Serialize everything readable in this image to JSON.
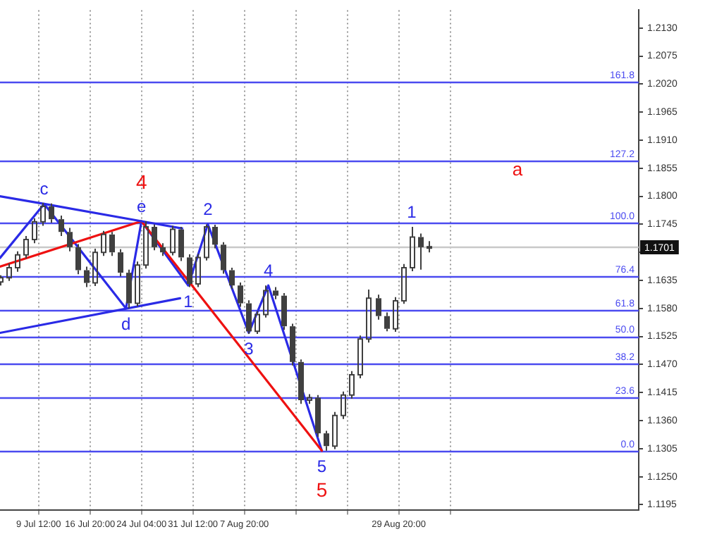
{
  "chart_data": {
    "type": "candlestick",
    "color": "#404040",
    "x": [
      "--07-04T00:00",
      "--07-05T05:00",
      "--07-06T11:00",
      "--07-07T16:00",
      "--07-08T21:00",
      "--07-10T03:00",
      "--07-11T08:00",
      "--07-12T13:00",
      "--07-13T19:00",
      "--07-15T00:00",
      "--07-16T05:00",
      "--07-17T11:00",
      "--07-18T16:00",
      "--07-19T21:00",
      "--07-21T03:00",
      "--07-22T08:00",
      "--07-23T13:00",
      "--07-24T19:00",
      "--07-26T00:00",
      "--07-27T05:00",
      "--07-28T11:00",
      "--07-29T16:00",
      "--07-30T21:00",
      "--08-01T03:00",
      "--08-02T08:00",
      "--08-03T13:00",
      "--08-04T19:00",
      "--08-06T00:00",
      "--08-07T05:00",
      "--08-08T11:00",
      "--08-09T16:00",
      "--08-10T21:00",
      "--08-12T03:00",
      "--08-13T08:00",
      "--08-14T13:00",
      "--08-15T19:00",
      "--08-17T00:00",
      "--08-18T05:00",
      "--08-19T11:00",
      "--08-20T16:00",
      "--08-21T21:00",
      "--08-23T03:00",
      "--08-24T08:00",
      "--08-25T13:00",
      "--08-26T19:00",
      "--08-28T00:00",
      "--08-29T05:00",
      "--08-30T11:00",
      "--08-31T16:00",
      "--09-01T21:00",
      "--09-03T03:00"
    ],
    "ohlc": [
      [
        1.1632,
        1.1645,
        1.1625,
        1.164
      ],
      [
        1.164,
        1.1668,
        1.1634,
        1.166
      ],
      [
        1.166,
        1.1692,
        1.1652,
        1.1685
      ],
      [
        1.1685,
        1.1722,
        1.1678,
        1.1715
      ],
      [
        1.1715,
        1.1757,
        1.1708,
        1.175
      ],
      [
        1.175,
        1.1787,
        1.1742,
        1.178
      ],
      [
        1.178,
        1.1786,
        1.1748,
        1.1755
      ],
      [
        1.1755,
        1.1762,
        1.1722,
        1.173
      ],
      [
        1.173,
        1.1738,
        1.1692,
        1.17
      ],
      [
        1.17,
        1.1706,
        1.1647,
        1.1655
      ],
      [
        1.1655,
        1.1662,
        1.1622,
        1.163
      ],
      [
        1.163,
        1.1697,
        1.1624,
        1.169
      ],
      [
        1.169,
        1.1732,
        1.1683,
        1.1725
      ],
      [
        1.1725,
        1.173,
        1.1683,
        1.169
      ],
      [
        1.169,
        1.1696,
        1.1643,
        1.165
      ],
      [
        1.165,
        1.1656,
        1.158,
        1.159
      ],
      [
        1.159,
        1.1672,
        1.1584,
        1.1665
      ],
      [
        1.1665,
        1.1751,
        1.1658,
        1.174
      ],
      [
        1.174,
        1.1745,
        1.1694,
        1.17
      ],
      [
        1.17,
        1.1708,
        1.1683,
        1.169
      ],
      [
        1.169,
        1.1742,
        1.1684,
        1.1735
      ],
      [
        1.1735,
        1.174,
        1.1673,
        1.168
      ],
      [
        1.168,
        1.1686,
        1.1622,
        1.1628
      ],
      [
        1.1628,
        1.1687,
        1.1622,
        1.168
      ],
      [
        1.168,
        1.1745,
        1.1674,
        1.174
      ],
      [
        1.174,
        1.1744,
        1.1698,
        1.1705
      ],
      [
        1.1705,
        1.171,
        1.1648,
        1.1655
      ],
      [
        1.1655,
        1.166,
        1.1618,
        1.1625
      ],
      [
        1.1625,
        1.1631,
        1.1583,
        1.159
      ],
      [
        1.159,
        1.1596,
        1.153,
        1.1535
      ],
      [
        1.1535,
        1.1575,
        1.153,
        1.1568
      ],
      [
        1.1568,
        1.1625,
        1.1562,
        1.1615
      ],
      [
        1.1615,
        1.1622,
        1.1598,
        1.1605
      ],
      [
        1.1605,
        1.161,
        1.1538,
        1.1545
      ],
      [
        1.1545,
        1.155,
        1.1468,
        1.1475
      ],
      [
        1.1475,
        1.148,
        1.1393,
        1.14
      ],
      [
        1.14,
        1.1412,
        1.1393,
        1.1405
      ],
      [
        1.1405,
        1.141,
        1.1328,
        1.1335
      ],
      [
        1.1335,
        1.134,
        1.1301,
        1.131
      ],
      [
        1.131,
        1.1377,
        1.1304,
        1.137
      ],
      [
        1.137,
        1.1417,
        1.1363,
        1.141
      ],
      [
        1.141,
        1.1457,
        1.1403,
        1.145
      ],
      [
        1.145,
        1.1527,
        1.1443,
        1.152
      ],
      [
        1.152,
        1.1617,
        1.1513,
        1.16
      ],
      [
        1.16,
        1.1607,
        1.1558,
        1.1565
      ],
      [
        1.1565,
        1.1572,
        1.1535,
        1.154
      ],
      [
        1.154,
        1.1602,
        1.1534,
        1.1595
      ],
      [
        1.1595,
        1.1667,
        1.1589,
        1.166
      ],
      [
        1.166,
        1.174,
        1.1653,
        1.172
      ],
      [
        1.172,
        1.1727,
        1.1656,
        1.17
      ],
      [
        1.17,
        1.1712,
        1.169,
        1.1701
      ]
    ],
    "series": [
      {
        "type": "line",
        "color": "#2a2ae6",
        "x": [
          "--07-04T00:00",
          "--07-10T07:00",
          "--07-24T04:00",
          "--07-29T23:00"
        ],
        "values": [
          1.18,
          1.1785,
          1.1751,
          1.1737
        ]
      },
      {
        "type": "line",
        "color": "#2a2ae6",
        "x": [
          "--07-04T00:00",
          "--07-29T16:00"
        ],
        "values": [
          1.1532,
          1.16
        ]
      },
      {
        "type": "line",
        "color": "#ee1111",
        "x": [
          "--07-04T00:00",
          "--07-24T04:00",
          "--08-18T21:00"
        ],
        "values": [
          1.1662,
          1.1751,
          1.1301
        ]
      },
      {
        "type": "line",
        "color": "#2a2ae6",
        "x": [
          "--07-04T00:00",
          "--07-10T07:00",
          "--07-21T23:00",
          "--07-24T04:00",
          "--07-30T20:00",
          "--08-02T15:00",
          "--08-08T11:00",
          "--08-11T06:00",
          "--08-18T21:00"
        ],
        "values": [
          1.1679,
          1.1785,
          1.158,
          1.1751,
          1.1625,
          1.1745,
          1.1532,
          1.1625,
          1.1301
        ]
      }
    ],
    "xlim": [
      "--07-04T00:00",
      "--10-03T01:00"
    ],
    "xticks": [
      {
        "value": "--07-09T12:00",
        "label": "9 Jul 12:00"
      },
      {
        "value": "--07-16T20:00",
        "label": "16 Jul 20:00"
      },
      {
        "value": "--07-24T04:00",
        "label": "24 Jul 04:00"
      },
      {
        "value": "--07-31T12:00",
        "label": "31 Jul 12:00"
      },
      {
        "value": "--08-07T20:00",
        "label": "7 Aug 20:00"
      },
      {
        "value": "--08-15T04:00",
        "label": null
      },
      {
        "value": "--08-22T12:00",
        "label": null
      },
      {
        "value": "--08-29T20:00",
        "label": "29 Aug 20:00"
      },
      {
        "value": "--09-06T04:00",
        "label": null
      }
    ],
    "ylim": [
      1.1184,
      1.2165
    ],
    "yticks": [
      1.1195,
      {
        "value": 1.125,
        "label": "1.1250"
      },
      1.1305,
      {
        "value": 1.136,
        "label": "1.1360"
      },
      1.1415,
      {
        "value": 1.147,
        "label": "1.1470"
      },
      1.1525,
      {
        "value": 1.158,
        "label": "1.1580"
      },
      1.1635,
      {
        "value": 1.169,
        "label": null
      },
      1.1745,
      {
        "value": 1.18,
        "label": "1.1800"
      },
      1.1855,
      {
        "value": 1.191,
        "label": "1.1910"
      },
      1.1965,
      {
        "value": 1.202,
        "label": "1.2020"
      },
      1.2075,
      {
        "value": 1.213,
        "label": "1.2130"
      }
    ],
    "ref_lines": [
      {
        "axis": "y",
        "value": 1.1301,
        "color": "#4b4bf0"
      },
      {
        "axis": "y",
        "value": 1.1406,
        "color": "#4b4bf0"
      },
      {
        "axis": "y",
        "value": 1.1472,
        "color": "#4b4bf0"
      },
      {
        "axis": "y",
        "value": 1.1525,
        "color": "#4b4bf0"
      },
      {
        "axis": "y",
        "value": 1.1577,
        "color": "#4b4bf0"
      },
      {
        "axis": "y",
        "value": 1.1643,
        "color": "#4b4bf0"
      },
      {
        "axis": "y",
        "value": 1.1701,
        "label": "1.1701",
        "color": "#c8c8c8"
      },
      {
        "axis": "y",
        "value": 1.1748,
        "color": "#4b4bf0"
      },
      {
        "axis": "y",
        "value": 1.187,
        "color": "#4b4bf0"
      },
      {
        "axis": "y",
        "value": 1.2024,
        "color": "#4b4bf0"
      }
    ],
    "annotations": [
      {
        "text": "c",
        "x": "--07-10T07:00",
        "y": 1.1785
      },
      {
        "text": "d",
        "x": "--07-21T23:00",
        "y": 1.158
      },
      {
        "text": "e",
        "x": "--07-24T04:00",
        "y": 1.1751
      },
      {
        "text": "4",
        "x": "--07-24T04:00",
        "y": 1.1751
      },
      {
        "text": "1",
        "x": "--07-30T20:00",
        "y": 1.1625
      },
      {
        "text": "2",
        "x": "--08-02T15:00",
        "y": 1.1745
      },
      {
        "text": "3",
        "x": "--08-08T11:00",
        "y": 1.1532
      },
      {
        "text": "4",
        "x": "--08-11T06:00",
        "y": 1.1625
      },
      {
        "text": "5",
        "x": "--08-18T21:00",
        "y": 1.1301
      },
      {
        "text": "5",
        "x": "--08-18T21:00",
        "y": 1.1301
      },
      {
        "text": "1",
        "x": "--08-31T16:00",
        "y": 1.174
      },
      {
        "text": "0.0",
        "y": 1.1301
      },
      {
        "text": "23.6",
        "y": 1.1406
      },
      {
        "text": "38.2",
        "y": 1.1472
      },
      {
        "text": "50.0",
        "y": 1.1525
      },
      {
        "text": "61.8",
        "y": 1.1577
      },
      {
        "text": "76.4",
        "y": 1.1643
      },
      {
        "text": "100.0",
        "y": 1.1748
      },
      {
        "text": "127.2",
        "y": 1.187
      },
      {
        "text": "161.8",
        "y": 1.2024
      },
      "a"
    ],
    "grid": "x",
    "legend": false
  }
}
